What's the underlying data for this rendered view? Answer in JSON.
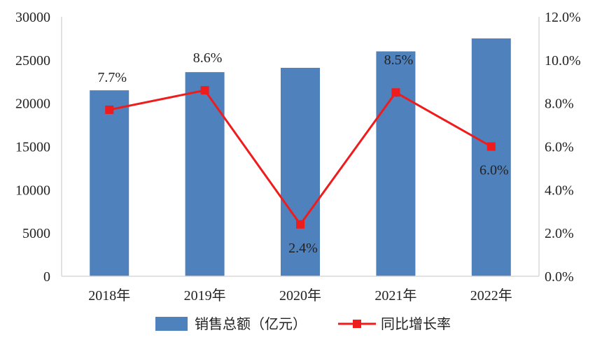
{
  "chart_data": {
    "type": "bar",
    "categories": [
      "2018年",
      "2019年",
      "2020年",
      "2021年",
      "2022年"
    ],
    "series": [
      {
        "name": "销售总额（亿元）",
        "type": "bar",
        "axis": "left",
        "values": [
          21500,
          23600,
          24100,
          26000,
          27500
        ]
      },
      {
        "name": "同比增长率",
        "type": "line",
        "axis": "right",
        "values": [
          7.7,
          8.6,
          2.4,
          8.5,
          6.0
        ],
        "labels": [
          "7.7%",
          "8.6%",
          "2.4%",
          "8.5%",
          "6.0%"
        ]
      }
    ],
    "y_left": {
      "min": 0,
      "max": 30000,
      "ticks": [
        "0",
        "5000",
        "10000",
        "15000",
        "20000",
        "25000",
        "30000"
      ]
    },
    "y_right": {
      "min": 0,
      "max": 12,
      "ticks": [
        "0.0%",
        "2.0%",
        "4.0%",
        "6.0%",
        "8.0%",
        "10.0%",
        "12.0%"
      ]
    },
    "grid": false,
    "legend_position": "bottom"
  },
  "colors": {
    "bar": "#4f81bd",
    "line": "#ee1c1c",
    "axis": "#d9d9d9"
  }
}
